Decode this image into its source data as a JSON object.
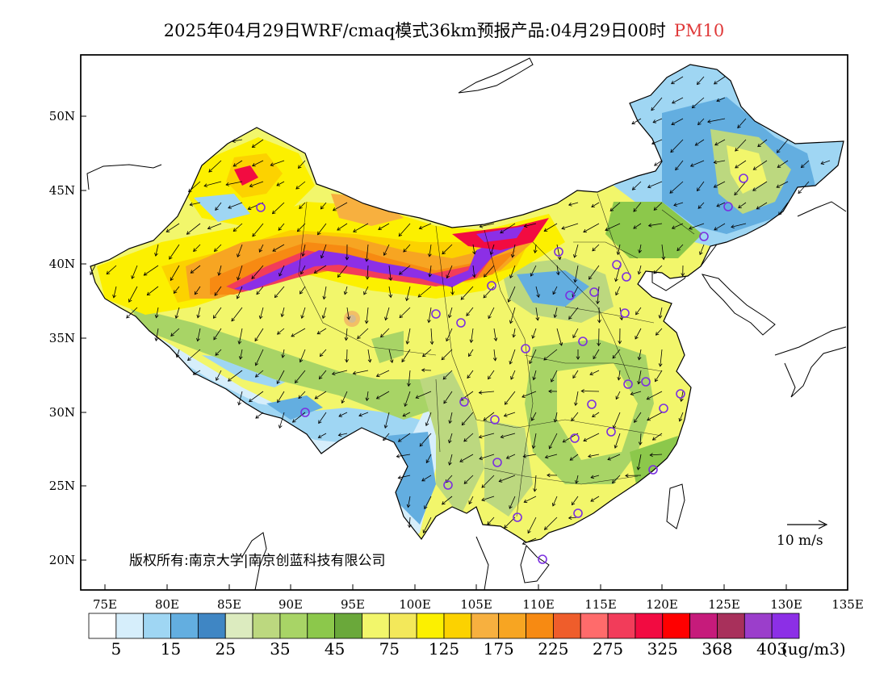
{
  "title": "2025年04月29日WRF/cmaq模式36km预报产品:04月29日00时",
  "variable": "PM10",
  "map": {
    "lon_ticks": [
      "75E",
      "80E",
      "85E",
      "90E",
      "95E",
      "100E",
      "105E",
      "110E",
      "115E",
      "120E",
      "125E",
      "130E",
      "135E"
    ],
    "lat_ticks": [
      "50N",
      "45N",
      "40N",
      "35N",
      "30N",
      "25N",
      "20N"
    ],
    "lon_range": [
      73,
      135
    ],
    "lat_range": [
      18,
      54
    ],
    "copyright": "版权所有:南京大学|南京创蓝科技有限公司",
    "wind_reference": "10 m/s"
  },
  "legend": {
    "labels": [
      "5",
      "15",
      "25",
      "35",
      "45",
      "75",
      "125",
      "175",
      "225",
      "275",
      "325",
      "368",
      "403"
    ],
    "unit": "(ug/m3)",
    "colors": [
      "#ffffff",
      "#d6eefb",
      "#9fd6f3",
      "#63aee0",
      "#3f86c4",
      "#dcebbf",
      "#bcd87f",
      "#a8d466",
      "#8cc84b",
      "#6aa83a",
      "#f2f66b",
      "#f3e85a",
      "#fcf000",
      "#fcd200",
      "#f7b03f",
      "#f7a522",
      "#f78a12",
      "#ef5d2b",
      "#ff6b6b",
      "#f23c5a",
      "#f20b41",
      "#ff0000",
      "#c61b7b",
      "#a8305b",
      "#9b3ecb",
      "#8c2fe6"
    ]
  },
  "cities": [
    {
      "name": "urumqi"
    },
    {
      "name": "harbin"
    },
    {
      "name": "changchun"
    },
    {
      "name": "shenyang"
    },
    {
      "name": "hohhot"
    },
    {
      "name": "beijing"
    },
    {
      "name": "tianjin"
    },
    {
      "name": "yinchuan"
    },
    {
      "name": "taiyuan"
    },
    {
      "name": "shijiazhuang"
    },
    {
      "name": "jinan"
    },
    {
      "name": "xining"
    },
    {
      "name": "lanzhou"
    },
    {
      "name": "xian"
    },
    {
      "name": "zhengzhou"
    },
    {
      "name": "lhasa"
    },
    {
      "name": "chengdu"
    },
    {
      "name": "chongqing"
    },
    {
      "name": "wuhan"
    },
    {
      "name": "hefei"
    },
    {
      "name": "nanjing"
    },
    {
      "name": "shanghai"
    },
    {
      "name": "hangzhou"
    },
    {
      "name": "changsha"
    },
    {
      "name": "nanchang"
    },
    {
      "name": "fuzhou"
    },
    {
      "name": "guiyang"
    },
    {
      "name": "kunming"
    },
    {
      "name": "nanning"
    },
    {
      "name": "guangzhou"
    },
    {
      "name": "haikou"
    }
  ]
}
